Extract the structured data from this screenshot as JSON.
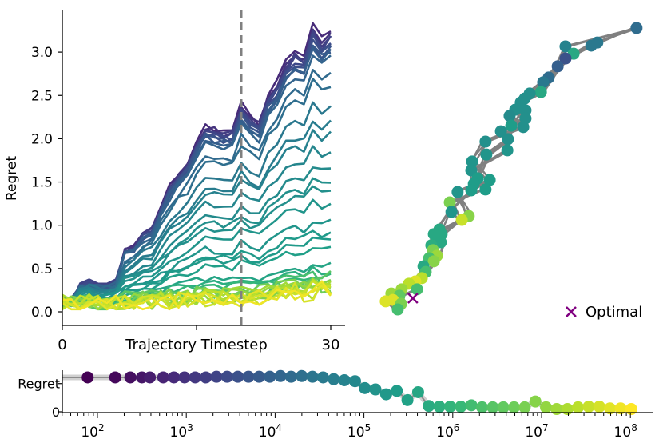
{
  "chart_data": [
    {
      "type": "line",
      "title": "",
      "xlabel": "Trajectory Timestep",
      "ylabel": "Regret",
      "xlim": [
        0,
        31
      ],
      "ylim": [
        -0.15,
        3.45
      ],
      "xticks": [
        0,
        15,
        30
      ],
      "xtick_labels": [
        "0",
        "",
        "30"
      ],
      "yticks": [
        0,
        0.5,
        1.0,
        1.5,
        2.0,
        2.5,
        3.0
      ],
      "ytick_labels": [
        "0.0",
        "0.5",
        "1.0",
        "1.5",
        "2.0",
        "2.5",
        "3.0"
      ],
      "vline_x": 20,
      "vline_color": "#808080",
      "colormap": "viridis",
      "profile": [
        0.15,
        0.12,
        0.3,
        0.35,
        0.3,
        0.3,
        0.35,
        0.7,
        0.75,
        0.9,
        0.95,
        1.2,
        1.45,
        1.6,
        1.72,
        1.95,
        2.15,
        2.12,
        2.08,
        2.1,
        2.4,
        2.25,
        2.18,
        2.5,
        2.65,
        2.9,
        3.0,
        2.95,
        3.3,
        3.15,
        3.25
      ],
      "series_scales": [
        1.0,
        0.99,
        0.98,
        0.97,
        0.96,
        0.95,
        0.94,
        0.93,
        0.92,
        0.9,
        0.84,
        0.8,
        0.72,
        0.66,
        0.62,
        0.56,
        0.5,
        0.45,
        0.42,
        0.37,
        0.3,
        0.26,
        0.24,
        0.2,
        0.14,
        0.12,
        0.1,
        0.08,
        0.07,
        0.06,
        0.05,
        0.05,
        0.04,
        0.04,
        0.03,
        0.03,
        0.03,
        0.02,
        0.02,
        0.02
      ],
      "series_colors": [
        0.12,
        0.15,
        0.18,
        0.2,
        0.22,
        0.24,
        0.26,
        0.28,
        0.3,
        0.32,
        0.34,
        0.36,
        0.4,
        0.42,
        0.44,
        0.46,
        0.48,
        0.5,
        0.5,
        0.52,
        0.52,
        0.54,
        0.54,
        0.56,
        0.58,
        0.62,
        0.66,
        0.7,
        0.74,
        0.78,
        0.8,
        0.82,
        0.84,
        0.86,
        0.88,
        0.9,
        0.92,
        0.94,
        0.96,
        0.98
      ]
    },
    {
      "type": "scatter",
      "title": "",
      "legend": {
        "label": "Optimal",
        "marker": "x",
        "color": "#800080",
        "placement": "bottom-right"
      },
      "line_color": "#808080",
      "points": [
        [
          9.91,
          10.43,
          0.35
        ],
        [
          8.29,
          9.8,
          0.4
        ],
        [
          8.51,
          9.91,
          0.4
        ],
        [
          7.37,
          9.77,
          0.45
        ],
        [
          7.66,
          9.51,
          0.6
        ],
        [
          7.37,
          9.34,
          0.25
        ],
        [
          7.09,
          9.06,
          0.3
        ],
        [
          6.77,
          8.66,
          0.35
        ],
        [
          6.57,
          8.49,
          0.4
        ],
        [
          6.49,
          8.14,
          0.6
        ],
        [
          6.09,
          8.09,
          0.5
        ],
        [
          5.91,
          7.91,
          0.5
        ],
        [
          5.77,
          7.77,
          0.5
        ],
        [
          5.57,
          7.51,
          0.5
        ],
        [
          5.94,
          7.49,
          0.5
        ],
        [
          5.37,
          7.29,
          0.48
        ],
        [
          5.94,
          7.2,
          0.5
        ],
        [
          5.43,
          6.94,
          0.55
        ],
        [
          5.86,
          6.89,
          0.5
        ],
        [
          5.06,
          6.74,
          0.5
        ],
        [
          5.31,
          6.46,
          0.5
        ],
        [
          4.51,
          6.37,
          0.5
        ],
        [
          5.29,
          6.06,
          0.52
        ],
        [
          4.54,
          5.91,
          0.52
        ],
        [
          4.03,
          5.66,
          0.52
        ],
        [
          4.0,
          5.34,
          0.52
        ],
        [
          4.23,
          5.06,
          0.55
        ],
        [
          4.66,
          5.0,
          0.55
        ],
        [
          4.09,
          4.86,
          0.55
        ],
        [
          4.51,
          4.66,
          0.55
        ],
        [
          3.51,
          4.57,
          0.52
        ],
        [
          4.0,
          4.63,
          0.55
        ],
        [
          3.23,
          4.2,
          0.8
        ],
        [
          3.29,
          3.86,
          0.52
        ],
        [
          3.91,
          3.71,
          0.82
        ],
        [
          3.66,
          3.57,
          0.92
        ],
        [
          2.86,
          3.23,
          0.6
        ],
        [
          2.94,
          3.06,
          0.6
        ],
        [
          2.66,
          3.06,
          0.6
        ],
        [
          2.91,
          2.77,
          0.6
        ],
        [
          2.57,
          2.66,
          0.62
        ],
        [
          2.63,
          2.49,
          0.8
        ],
        [
          2.77,
          2.29,
          0.85
        ],
        [
          2.49,
          2.2,
          0.7
        ],
        [
          2.66,
          2.09,
          0.82
        ],
        [
          2.29,
          1.91,
          0.6
        ],
        [
          2.37,
          1.71,
          0.7
        ],
        [
          2.23,
          1.49,
          0.9
        ],
        [
          2.0,
          1.37,
          0.95
        ],
        [
          1.77,
          1.29,
          0.9
        ],
        [
          2.06,
          1.09,
          0.7
        ],
        [
          1.51,
          1.09,
          0.85
        ],
        [
          1.14,
          0.94,
          0.85
        ],
        [
          1.43,
          0.86,
          0.75
        ],
        [
          0.94,
          0.66,
          0.95
        ],
        [
          1.2,
          0.71,
          0.95
        ],
        [
          1.49,
          0.57,
          0.8
        ],
        [
          1.37,
          0.37,
          0.7
        ]
      ],
      "optimal": [
        1.91,
        0.77
      ]
    },
    {
      "type": "scatter",
      "title": "",
      "xscale": "log",
      "xlim_log10": [
        1.6,
        8.26
      ],
      "xticks_log10": [
        2,
        3,
        4,
        5,
        6,
        7,
        8
      ],
      "xtick_bases": [
        "10",
        "10",
        "10",
        "10",
        "10",
        "10",
        "10"
      ],
      "xtick_exps": [
        "2",
        "3",
        "4",
        "5",
        "6",
        "7",
        "8"
      ],
      "ytick_labels": [
        "0",
        "Regret"
      ],
      "yticks": [
        0,
        0.82
      ],
      "points_log10x_y": [
        [
          1.89,
          1.0
        ],
        [
          2.2,
          1.0
        ],
        [
          2.37,
          1.0
        ],
        [
          2.5,
          1.0
        ],
        [
          2.59,
          1.0
        ],
        [
          2.74,
          1.0
        ],
        [
          2.86,
          1.0
        ],
        [
          2.98,
          1.0
        ],
        [
          3.1,
          1.0
        ],
        [
          3.22,
          1.0
        ],
        [
          3.34,
          1.02
        ],
        [
          3.46,
          1.02
        ],
        [
          3.58,
          1.02
        ],
        [
          3.7,
          1.02
        ],
        [
          3.82,
          1.02
        ],
        [
          3.94,
          1.02
        ],
        [
          4.06,
          1.04
        ],
        [
          4.18,
          1.02
        ],
        [
          4.3,
          1.04
        ],
        [
          4.42,
          1.02
        ],
        [
          4.54,
          1.0
        ],
        [
          4.66,
          0.95
        ],
        [
          4.78,
          0.92
        ],
        [
          4.9,
          0.89
        ],
        [
          5.01,
          0.69
        ],
        [
          5.13,
          0.65
        ],
        [
          5.25,
          0.51
        ],
        [
          5.37,
          0.61
        ],
        [
          5.49,
          0.34
        ],
        [
          5.61,
          0.57
        ],
        [
          5.73,
          0.17
        ],
        [
          5.85,
          0.15
        ],
        [
          5.97,
          0.15
        ],
        [
          6.09,
          0.15
        ],
        [
          6.21,
          0.19
        ],
        [
          6.33,
          0.13
        ],
        [
          6.45,
          0.13
        ],
        [
          6.57,
          0.13
        ],
        [
          6.69,
          0.13
        ],
        [
          6.81,
          0.13
        ],
        [
          6.93,
          0.3
        ],
        [
          7.05,
          0.13
        ],
        [
          7.17,
          0.08
        ],
        [
          7.29,
          0.08
        ],
        [
          7.41,
          0.13
        ],
        [
          7.53,
          0.15
        ],
        [
          7.65,
          0.15
        ],
        [
          7.77,
          0.1
        ],
        [
          7.89,
          0.1
        ],
        [
          8.01,
          0.08
        ]
      ]
    }
  ]
}
